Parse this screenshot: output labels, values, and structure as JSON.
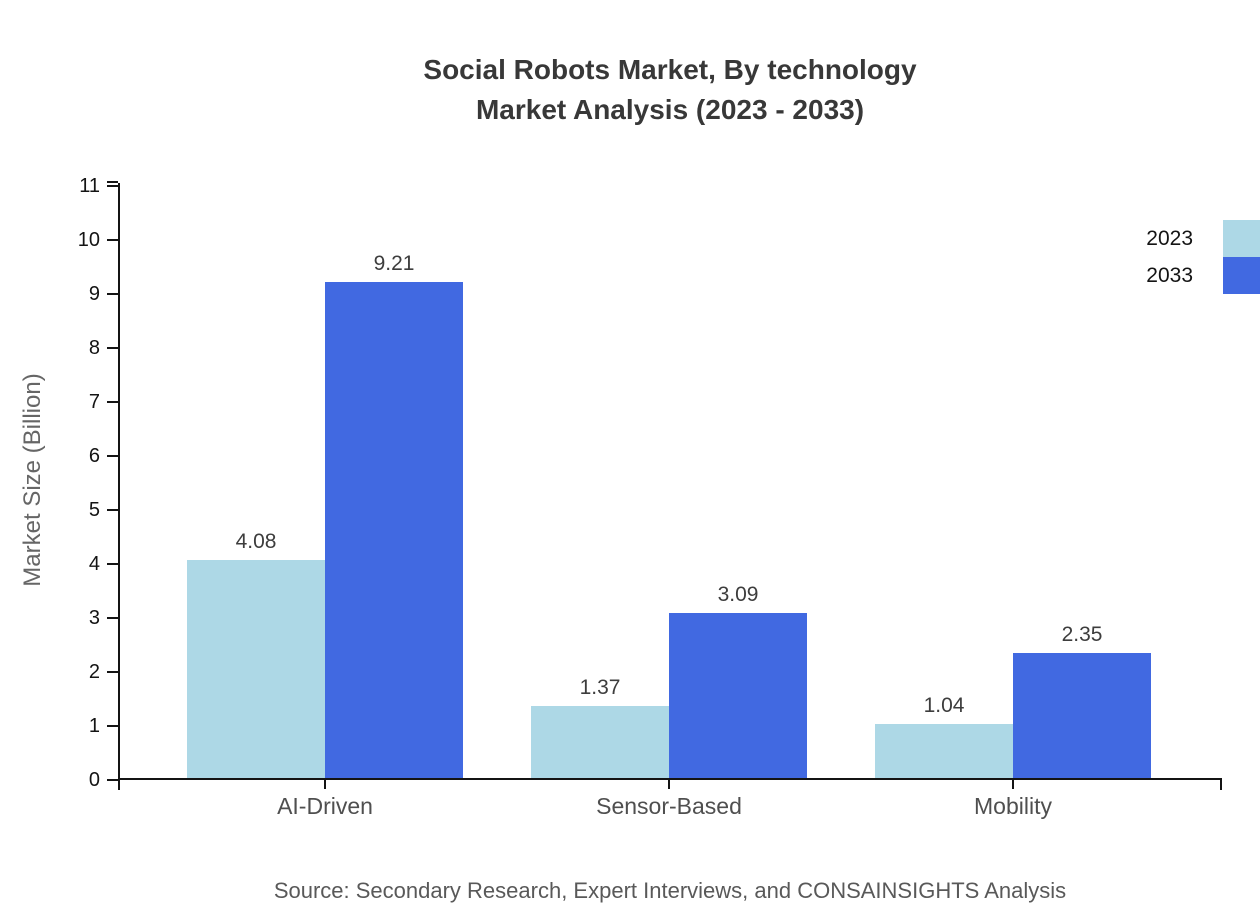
{
  "title": {
    "line1": "Social Robots Market, By technology",
    "line2": "Market Analysis (2023 - 2033)"
  },
  "source": "Source: Secondary Research, Expert Interviews, and CONSAINSIGHTS Analysis",
  "chart_data": {
    "type": "bar",
    "title": "Social Robots Market, By technology Market Analysis (2023 - 2033)",
    "categories": [
      "AI-Driven",
      "Sensor-Based",
      "Mobility"
    ],
    "series": [
      {
        "name": "2023",
        "color": "#ADD8E6",
        "values": [
          4.08,
          1.37,
          1.04
        ]
      },
      {
        "name": "2033",
        "color": "#4169E1",
        "values": [
          9.21,
          3.09,
          2.35
        ]
      }
    ],
    "xlabel": "",
    "ylabel": "Market Size (Billion)",
    "ylim": [
      0,
      11.05
    ],
    "yticks": [
      0,
      1,
      2,
      3,
      4,
      5,
      6,
      7,
      8,
      9,
      10,
      11
    ],
    "grid": false,
    "legend_position": "top-right",
    "bar_value_labels": true,
    "value_label_format": "0.00"
  }
}
